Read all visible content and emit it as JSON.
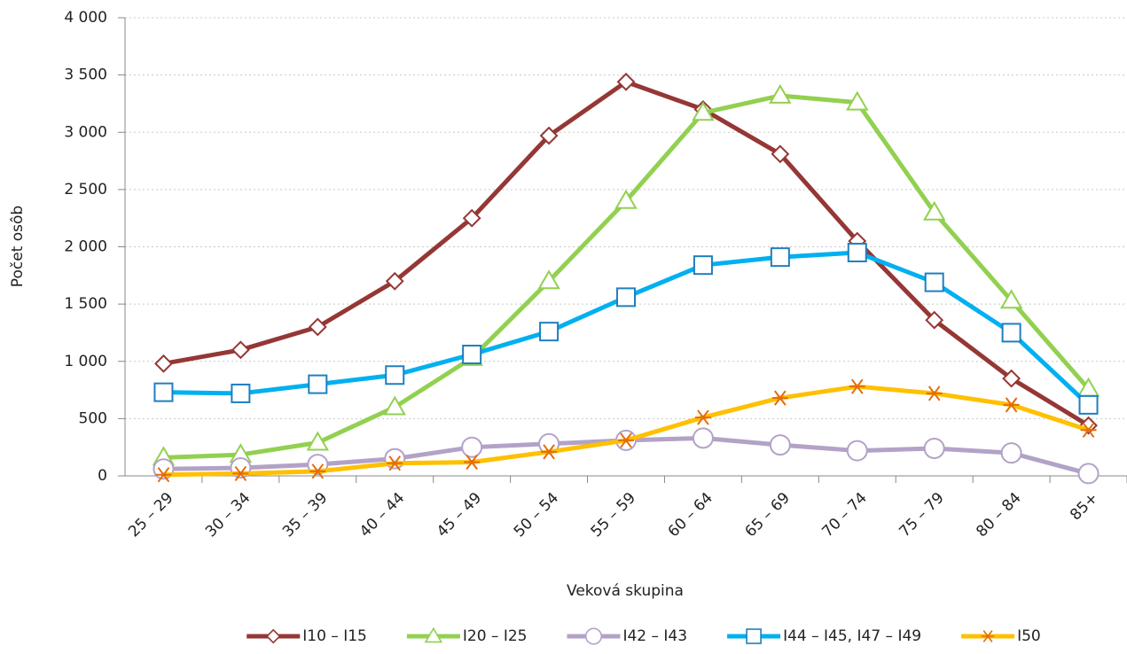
{
  "chart_data": {
    "type": "line",
    "x_label": "Veková skupina",
    "y_label": "Počet osôb",
    "categories": [
      "25 – 29",
      "30 – 34",
      "35 – 39",
      "40 – 44",
      "45 – 49",
      "50 – 54",
      "55 – 59",
      "60 – 64",
      "65 – 69",
      "70 – 74",
      "75 – 79",
      "80 – 84",
      "85+"
    ],
    "series": [
      {
        "name": "I10 – I15",
        "color": "#953735",
        "marker": "diamond",
        "values": [
          980,
          1100,
          1300,
          1700,
          2250,
          2970,
          3440,
          3200,
          2810,
          2050,
          1360,
          850,
          440
        ]
      },
      {
        "name": "I20 – I25",
        "color": "#92d050",
        "marker": "triangle",
        "values": [
          160,
          185,
          290,
          600,
          1030,
          1700,
          2400,
          3170,
          3320,
          3260,
          2300,
          1530,
          760
        ]
      },
      {
        "name": "I42 – I43",
        "color": "#b3a2c7",
        "marker": "circle",
        "values": [
          60,
          70,
          100,
          150,
          250,
          280,
          310,
          330,
          270,
          220,
          240,
          200,
          20
        ]
      },
      {
        "name": "I44 – I45, I47 – I49",
        "color": "#00b0f0",
        "marker": "square",
        "values": [
          730,
          720,
          800,
          880,
          1060,
          1260,
          1560,
          1840,
          1910,
          1950,
          1690,
          1250,
          620
        ]
      },
      {
        "name": "I50",
        "color": "#ffc000",
        "marker": "star",
        "values": [
          10,
          20,
          40,
          110,
          120,
          210,
          310,
          510,
          680,
          780,
          720,
          620,
          400
        ]
      }
    ],
    "ylim": [
      0,
      4000
    ],
    "yticks": [
      0,
      500,
      {
        "value": 1000,
        "label": "1 000"
      },
      {
        "value": 1500,
        "label": "1 500"
      },
      {
        "value": 2000,
        "label": "2 000"
      },
      {
        "value": 2500,
        "label": "2 500"
      },
      {
        "value": 3000,
        "label": "3 000"
      },
      {
        "value": 3500,
        "label": "3 500"
      },
      {
        "value": 4000,
        "label": "4 000"
      }
    ],
    "grid": true,
    "legend": "bottom"
  }
}
